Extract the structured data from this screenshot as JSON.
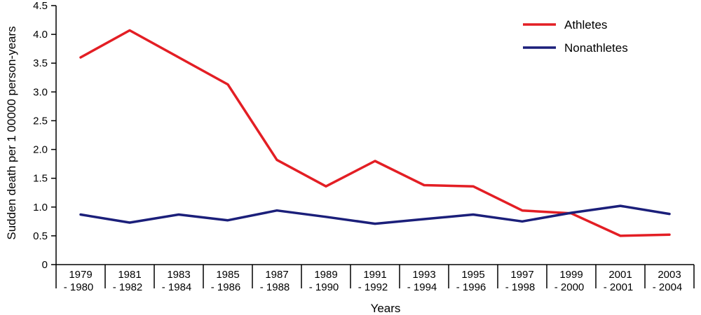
{
  "chart_data": {
    "type": "line",
    "title": "",
    "xlabel": "Years",
    "ylabel": "Sudden death per 1 00000 person-years",
    "categories": [
      [
        "1979",
        "- 1980"
      ],
      [
        "1981",
        "- 1982"
      ],
      [
        "1983",
        "- 1984"
      ],
      [
        "1985",
        "- 1986"
      ],
      [
        "1987",
        "- 1988"
      ],
      [
        "1989",
        "- 1990"
      ],
      [
        "1991",
        "- 1992"
      ],
      [
        "1993",
        "- 1994"
      ],
      [
        "1995",
        "- 1996"
      ],
      [
        "1997",
        "- 1998"
      ],
      [
        "1999",
        "- 2000"
      ],
      [
        "2001",
        "- 2001"
      ],
      [
        "2003",
        "- 2004"
      ]
    ],
    "ylim": [
      0,
      4.5
    ],
    "yticks": [
      "0",
      "0.5",
      "1.0",
      "1.5",
      "2.0",
      "2.5",
      "3.0",
      "3.5",
      "4.0",
      "4.5"
    ],
    "grid": false,
    "legend_position": "top-right",
    "series": [
      {
        "name": "Athletes",
        "color": "#e31e24",
        "values": [
          3.6,
          4.07,
          3.6,
          3.13,
          1.82,
          1.36,
          1.8,
          1.38,
          1.36,
          0.94,
          0.89,
          0.5,
          0.52
        ]
      },
      {
        "name": "Nonathletes",
        "color": "#1b1f7a",
        "values": [
          0.87,
          0.73,
          0.87,
          0.77,
          0.94,
          0.83,
          0.71,
          0.79,
          0.87,
          0.75,
          0.9,
          1.02,
          0.88
        ]
      }
    ]
  }
}
